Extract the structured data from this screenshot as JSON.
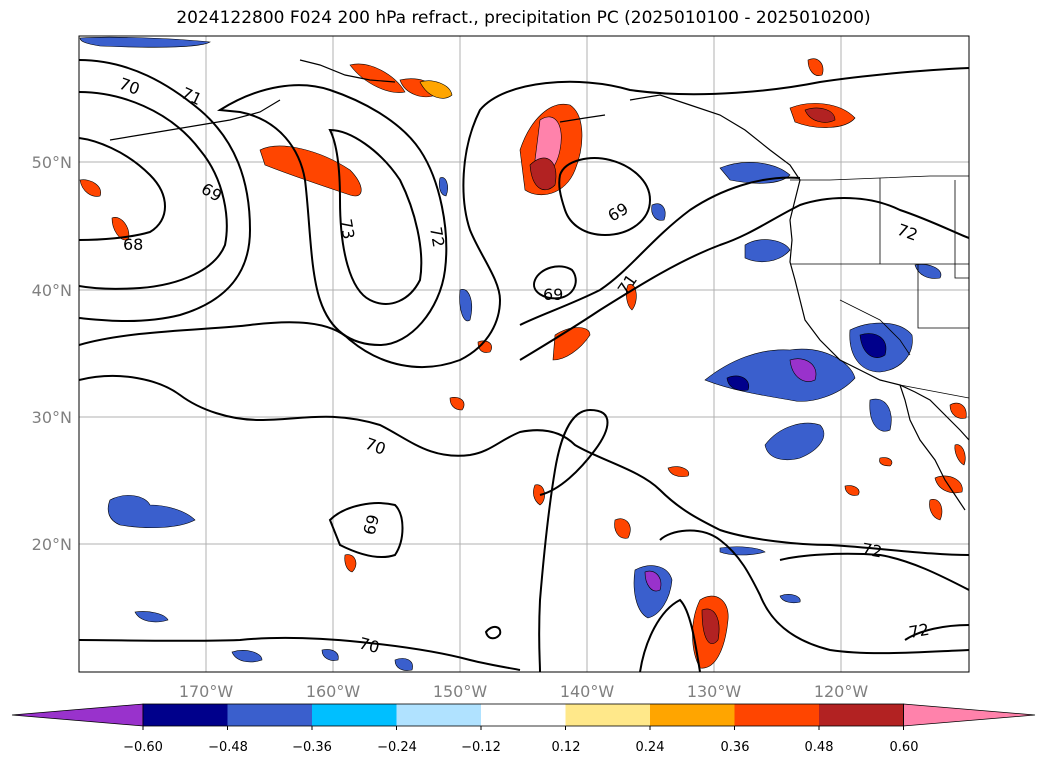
{
  "title": "2024122800 F024 200 hPa refract., precipitation PC (2025010100 - 2025010200)",
  "map": {
    "lat_ticks": [
      "50°N",
      "40°N",
      "30°N",
      "20°N"
    ],
    "lon_ticks": [
      "170°W",
      "160°W",
      "150°W",
      "140°W",
      "130°W",
      "120°W"
    ],
    "contour_labels": [
      "70",
      "71",
      "69",
      "68",
      "73",
      "72",
      "69",
      "71",
      "69",
      "72",
      "70",
      "69",
      "70",
      "72",
      "72"
    ]
  },
  "colorbar": {
    "labels": [
      "−0.60",
      "−0.48",
      "−0.36",
      "−0.24",
      "−0.12",
      "0.12",
      "0.24",
      "0.36",
      "0.48",
      "0.60"
    ],
    "colors": [
      "#9932cc",
      "#00008b",
      "#3a5fcd",
      "#00bfff",
      "#b0e2ff",
      "#ffffff",
      "#ffe88a",
      "#ffa500",
      "#ff4500",
      "#b22222",
      "#ff82ab"
    ]
  }
}
